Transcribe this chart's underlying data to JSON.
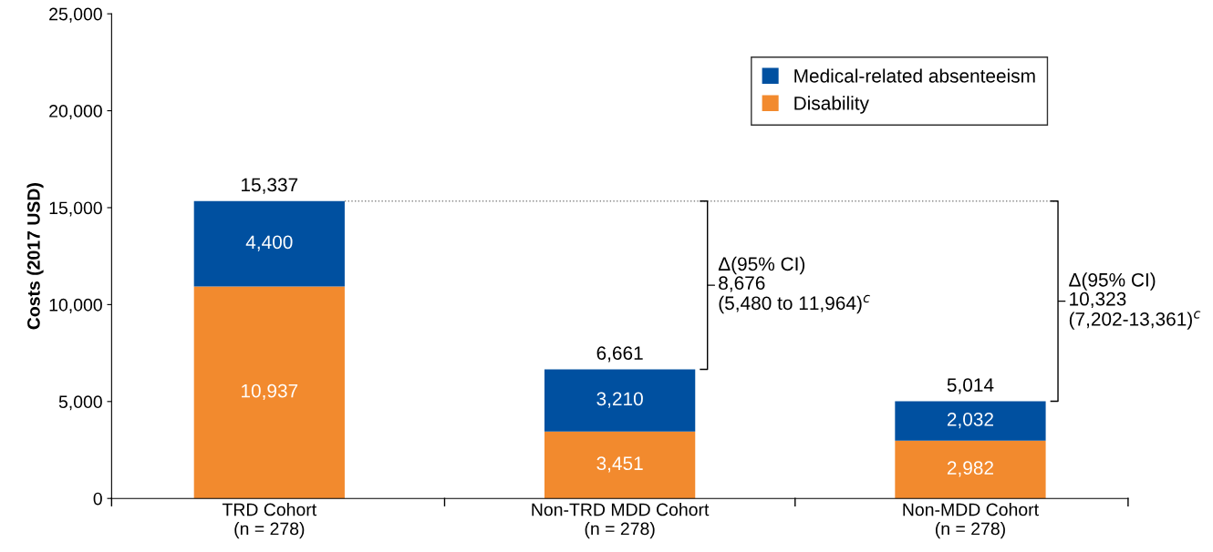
{
  "chart_data": {
    "type": "bar",
    "stacked": true,
    "categories": [
      "TRD Cohort\n(n = 278)",
      "Non-TRD MDD Cohort\n(n = 278)",
      "Non-MDD Cohort\n(n = 278)"
    ],
    "series": [
      {
        "name": "Disability",
        "color": "#f28a2e",
        "values": [
          10937,
          3451,
          2982
        ],
        "value_labels": [
          "10,937",
          "3,451",
          "2,982"
        ]
      },
      {
        "name": "Medical-related absenteeism",
        "color": "#0050a0",
        "values": [
          4400,
          3210,
          2032
        ],
        "value_labels": [
          "4,400",
          "3,210",
          "2,032"
        ]
      }
    ],
    "totals": [
      "15,337",
      "6,661",
      "5,014"
    ],
    "ylabel": "Costs (2017 USD)",
    "ylim": [
      0,
      25000
    ],
    "yticks": [
      0,
      {
        "value": 5000,
        "label": "5,000"
      },
      {
        "value": 10000,
        "label": "10,000"
      },
      {
        "value": 15000,
        "label": "15,000"
      },
      {
        "value": 20000,
        "label": "20,000"
      },
      {
        "value": 25000,
        "label": "25,000"
      }
    ],
    "annotations": [
      "Δ(95% CI)\n8,676\n(5,480 to 11,964)$^{c}$",
      "Δ(95% CI)\n10,323\n(7,202-13,361)$^{c}$"
    ],
    "ref_lines": [
      {
        "axis": "y",
        "value": 15337,
        "line_style": "dotted",
        "color": "#888888"
      }
    ],
    "legend": "top right",
    "grid": false
  }
}
